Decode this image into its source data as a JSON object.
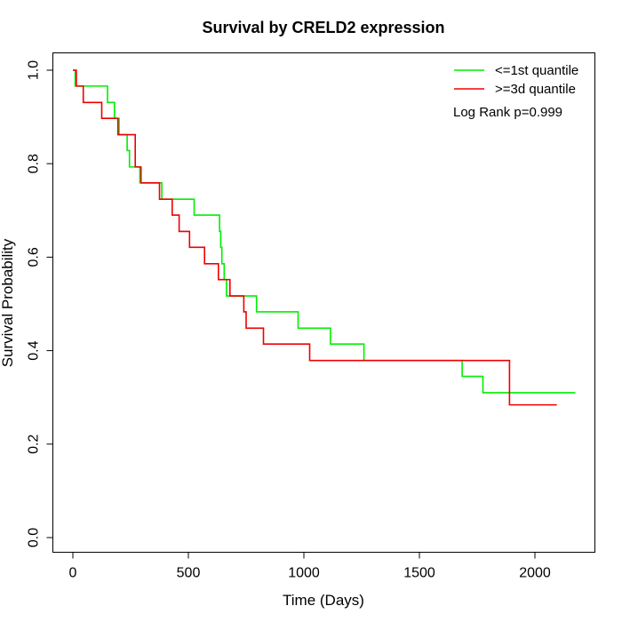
{
  "chart_data": {
    "type": "line",
    "step": true,
    "title": "Survival by CRELD2 expression",
    "xlabel": "Time (Days)",
    "ylabel": "Survival Probability",
    "xlim": [
      0,
      2250
    ],
    "ylim": [
      0,
      1.0
    ],
    "xticks": [
      0,
      500,
      1000,
      1500,
      2000
    ],
    "xtick_labels": [
      "0",
      "500",
      "1000",
      "1500",
      "2000"
    ],
    "yticks": [
      0.0,
      0.2,
      0.4,
      0.6,
      0.8,
      1.0
    ],
    "ytick_labels": [
      "0.0",
      "0.2",
      "0.4",
      "0.6",
      "0.8",
      "1.0"
    ],
    "grid": false,
    "legend_position": "top-right",
    "annotation": "Log Rank p=0.999",
    "series": [
      {
        "name": "<=1st quantile",
        "color": "#00ee00",
        "x": [
          0,
          10,
          150,
          180,
          200,
          235,
          245,
          255,
          290,
          385,
          525,
          635,
          640,
          645,
          655,
          665,
          680,
          690,
          795,
          975,
          1115,
          1260,
          1685,
          1775,
          2175
        ],
        "y": [
          1.0,
          0.966,
          0.931,
          0.897,
          0.862,
          0.828,
          0.793,
          0.793,
          0.759,
          0.724,
          0.69,
          0.655,
          0.621,
          0.586,
          0.552,
          0.517,
          0.517,
          0.517,
          0.483,
          0.448,
          0.414,
          0.379,
          0.345,
          0.31,
          0.31
        ]
      },
      {
        "name": ">=3d quantile",
        "color": "#ee0000",
        "x": [
          0,
          15,
          45,
          125,
          195,
          270,
          295,
          375,
          430,
          460,
          505,
          570,
          630,
          680,
          740,
          750,
          760,
          825,
          1025,
          1890,
          2095
        ],
        "y": [
          1.0,
          0.966,
          0.931,
          0.897,
          0.862,
          0.793,
          0.759,
          0.724,
          0.69,
          0.655,
          0.621,
          0.586,
          0.552,
          0.517,
          0.483,
          0.448,
          0.448,
          0.414,
          0.379,
          0.284,
          0.284
        ]
      }
    ]
  }
}
